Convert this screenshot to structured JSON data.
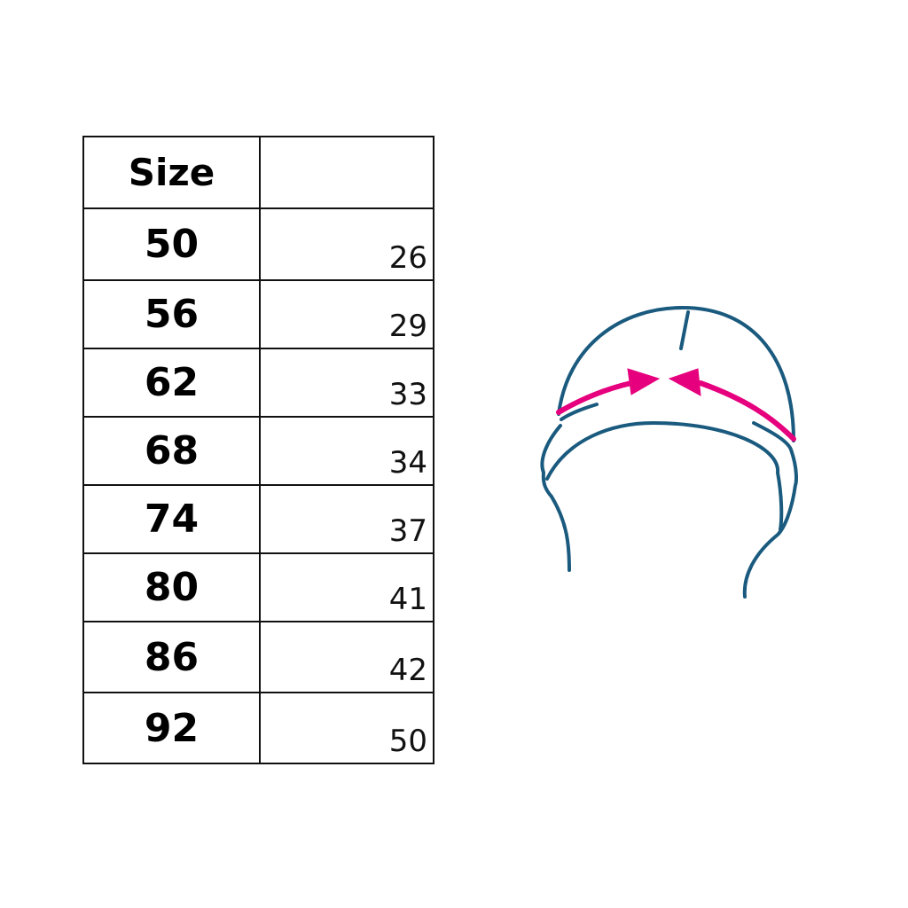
{
  "table": {
    "header": {
      "size": "Size",
      "value": ""
    },
    "rows": [
      {
        "size": "50",
        "value": "26"
      },
      {
        "size": "56",
        "value": "29"
      },
      {
        "size": "62",
        "value": "33"
      },
      {
        "size": "68",
        "value": "34"
      },
      {
        "size": "74",
        "value": "37"
      },
      {
        "size": "80",
        "value": "41"
      },
      {
        "size": "86",
        "value": "42"
      },
      {
        "size": "92",
        "value": "50"
      }
    ]
  },
  "diagram": {
    "subject": "hat-head-circumference",
    "colors": {
      "outline": "#1a5a7e",
      "arrow": "#e6007e"
    }
  }
}
